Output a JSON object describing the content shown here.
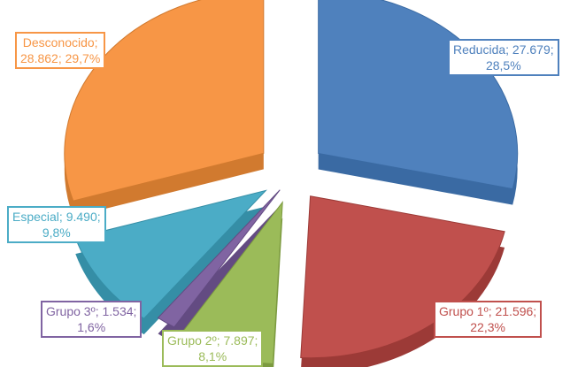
{
  "chart_data": {
    "type": "pie",
    "title": "",
    "slices": [
      {
        "name": "Reducida",
        "value": 27679,
        "value_text": "27.679",
        "percent_text": "28,5%",
        "color": "#4f81bd",
        "side": "#3a6aa3",
        "text_color": "#4f81bd"
      },
      {
        "name": "Grupo 1º",
        "value": 21596,
        "value_text": "21.596",
        "percent_text": "22,3%",
        "color": "#c0504d",
        "side": "#9c3a37",
        "text_color": "#c0504d"
      },
      {
        "name": "Grupo 2º",
        "value": 7897,
        "value_text": "7.897",
        "percent_text": "8,1%",
        "color": "#9bbb59",
        "side": "#7c9a40",
        "text_color": "#9bbb59"
      },
      {
        "name": "Grupo 3º",
        "value": 1534,
        "value_text": "1.534",
        "percent_text": "1,6%",
        "color": "#8064a2",
        "side": "#634b82",
        "text_color": "#8064a2"
      },
      {
        "name": "Especial",
        "value": 9490,
        "value_text": "9.490",
        "percent_text": "9,8%",
        "color": "#4bacc6",
        "side": "#358ea6",
        "text_color": "#4bacc6"
      },
      {
        "name": "Desconocido",
        "value": 28862,
        "value_text": "28.862",
        "percent_text": "29,7%",
        "color": "#f79646",
        "side": "#d17a2f",
        "text_color": "#f79646"
      }
    ]
  }
}
